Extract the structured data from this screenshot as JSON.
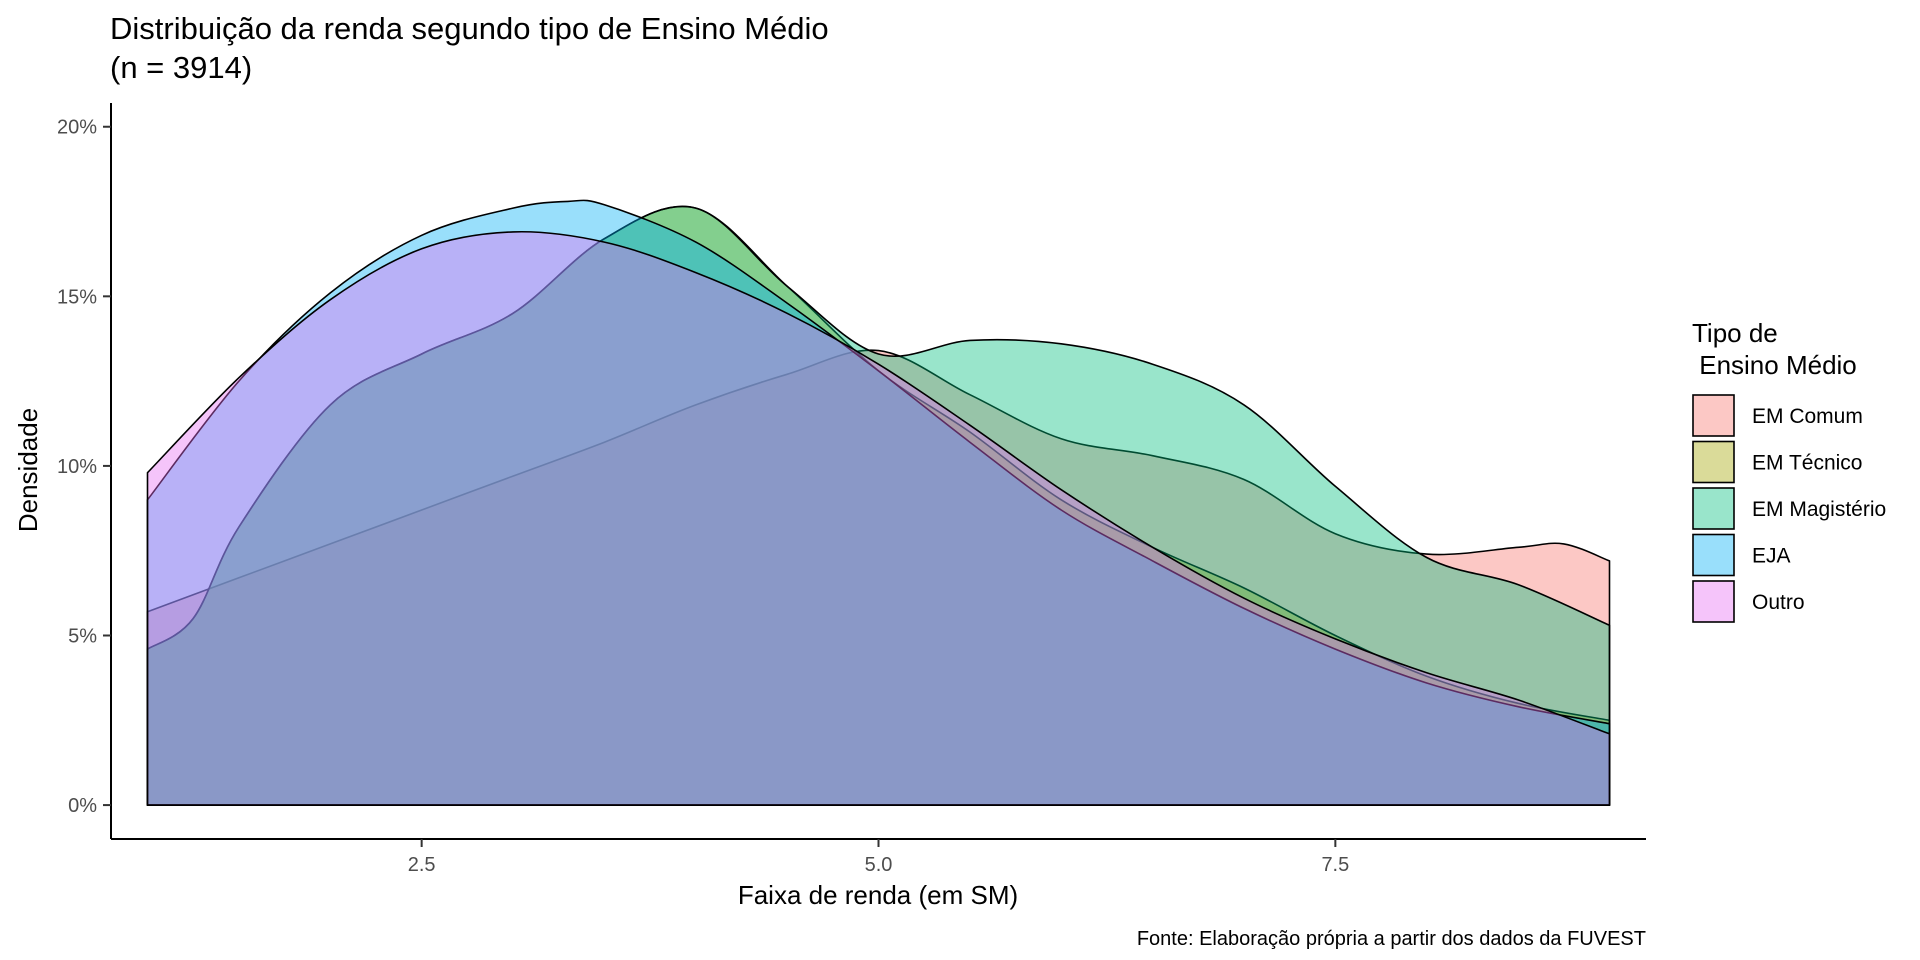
{
  "chart_data": {
    "type": "area",
    "title_lines": [
      "Distribuição da renda segundo tipo de Ensino Médio",
      "(n = 3914)"
    ],
    "xlabel": "Faixa de renda (em SM)",
    "ylabel": "Densidade",
    "caption": "Fonte: Elaboração própria a partir dos dados da FUVEST",
    "xlim": [
      0.8,
      9.2
    ],
    "ylim": [
      -0.01,
      0.207
    ],
    "x_ticks": [
      {
        "value": 2.5,
        "label": "2.5"
      },
      {
        "value": 5.0,
        "label": "5.0"
      },
      {
        "value": 7.5,
        "label": "7.5"
      }
    ],
    "y_ticks": [
      {
        "value": 0,
        "label": "0%"
      },
      {
        "value": 0.05,
        "label": "5%"
      },
      {
        "value": 0.1,
        "label": "10%"
      },
      {
        "value": 0.15,
        "label": "15%"
      },
      {
        "value": 0.2,
        "label": "20%"
      }
    ],
    "grid": false,
    "fill_opacity": 0.4,
    "legend": {
      "title_lines": [
        "Tipo de",
        " Ensino Médio"
      ],
      "position": "right"
    },
    "series": [
      {
        "name": "EM Comum",
        "color": "#F8766D",
        "x": [
          1.0,
          1.5,
          2.0,
          2.5,
          3.0,
          3.5,
          4.0,
          4.5,
          5.0,
          5.5,
          6.0,
          6.5,
          7.0,
          7.5,
          8.0,
          8.5,
          8.75,
          9.0
        ],
        "values": [
          0.057,
          0.067,
          0.077,
          0.087,
          0.097,
          0.107,
          0.118,
          0.127,
          0.134,
          0.121,
          0.108,
          0.103,
          0.096,
          0.08,
          0.074,
          0.076,
          0.077,
          0.072
        ]
      },
      {
        "name": "EM Técnico",
        "color": "#A3A500",
        "x": [
          1.0,
          1.25,
          1.5,
          2.0,
          2.5,
          3.0,
          3.5,
          4.0,
          4.5,
          5.0,
          5.5,
          6.0,
          6.5,
          7.0,
          7.5,
          8.0,
          8.5,
          9.0
        ],
        "values": [
          0.046,
          0.055,
          0.082,
          0.118,
          0.133,
          0.145,
          0.167,
          0.176,
          0.153,
          0.128,
          0.11,
          0.09,
          0.076,
          0.064,
          0.05,
          0.038,
          0.03,
          0.025
        ]
      },
      {
        "name": "EM Magistério",
        "color": "#00BF7D",
        "x": [
          1.0,
          1.25,
          1.5,
          2.0,
          2.5,
          3.0,
          3.5,
          4.0,
          4.5,
          5.0,
          5.5,
          6.0,
          6.5,
          7.0,
          7.5,
          8.0,
          8.5,
          9.0
        ],
        "values": [
          0.046,
          0.055,
          0.082,
          0.118,
          0.133,
          0.145,
          0.167,
          0.176,
          0.153,
          0.133,
          0.137,
          0.136,
          0.13,
          0.118,
          0.094,
          0.073,
          0.065,
          0.053
        ]
      },
      {
        "name": "EJA",
        "color": "#00B0F6",
        "x": [
          1.0,
          1.5,
          2.0,
          2.5,
          3.0,
          3.3,
          3.5,
          4.0,
          4.5,
          5.0,
          5.5,
          6.0,
          6.5,
          7.0,
          7.5,
          8.0,
          8.5,
          9.0
        ],
        "values": [
          0.09,
          0.125,
          0.151,
          0.168,
          0.176,
          0.178,
          0.177,
          0.166,
          0.148,
          0.128,
          0.107,
          0.087,
          0.072,
          0.058,
          0.046,
          0.036,
          0.029,
          0.024
        ]
      },
      {
        "name": "Outro",
        "color": "#E76BF3",
        "x": [
          1.0,
          1.5,
          2.0,
          2.5,
          3.0,
          3.5,
          4.0,
          4.5,
          5.0,
          5.5,
          6.0,
          6.5,
          7.0,
          7.5,
          8.0,
          8.5,
          9.0
        ],
        "values": [
          0.098,
          0.126,
          0.149,
          0.164,
          0.169,
          0.166,
          0.157,
          0.145,
          0.13,
          0.112,
          0.093,
          0.076,
          0.061,
          0.049,
          0.039,
          0.031,
          0.021
        ]
      }
    ]
  }
}
